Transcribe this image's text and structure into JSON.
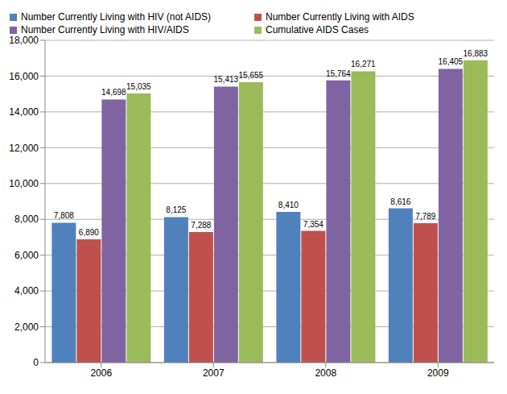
{
  "chart_data": {
    "type": "bar",
    "categories": [
      "2006",
      "2007",
      "2008",
      "2009"
    ],
    "series": [
      {
        "name": "Number Currently Living with HIV (not AIDS)",
        "color": "#4f81bd",
        "values": [
          7808,
          8125,
          8410,
          8616
        ],
        "value_labels": [
          "7,808",
          "8,125",
          "8,410",
          "8,616"
        ]
      },
      {
        "name": "Number Currently Living with AIDS",
        "color": "#c0504d",
        "values": [
          6890,
          7288,
          7354,
          7789
        ],
        "value_labels": [
          "6,890",
          "7,288",
          "7,354",
          "7,789"
        ]
      },
      {
        "name": "Number Currently Living with HIV/AIDS",
        "color": "#8064a2",
        "values": [
          14698,
          15413,
          15764,
          16405
        ],
        "value_labels": [
          "14,698",
          "15,413",
          "15,764",
          "16,405"
        ]
      },
      {
        "name": "Cumulative AIDS Cases",
        "color": "#9bbb59",
        "values": [
          15035,
          15655,
          16271,
          16883
        ],
        "value_labels": [
          "15,035",
          "15,655",
          "16,271",
          "16,883"
        ]
      }
    ],
    "ylim": [
      0,
      18000
    ],
    "yticks": [
      0,
      {
        "value": 2000,
        "label": "2,000"
      },
      {
        "value": 4000,
        "label": "4,000"
      },
      {
        "value": 6000,
        "label": "6,000"
      },
      {
        "value": 8000,
        "label": "8,000"
      },
      {
        "value": 10000,
        "label": "10,000"
      },
      {
        "value": 12000,
        "label": "12,000"
      },
      {
        "value": 14000,
        "label": "14,000"
      },
      {
        "value": 16000,
        "label": "16,000"
      },
      {
        "value": 18000,
        "label": "18,000"
      }
    ],
    "grid": true,
    "legend": "top",
    "data_labels": true
  }
}
